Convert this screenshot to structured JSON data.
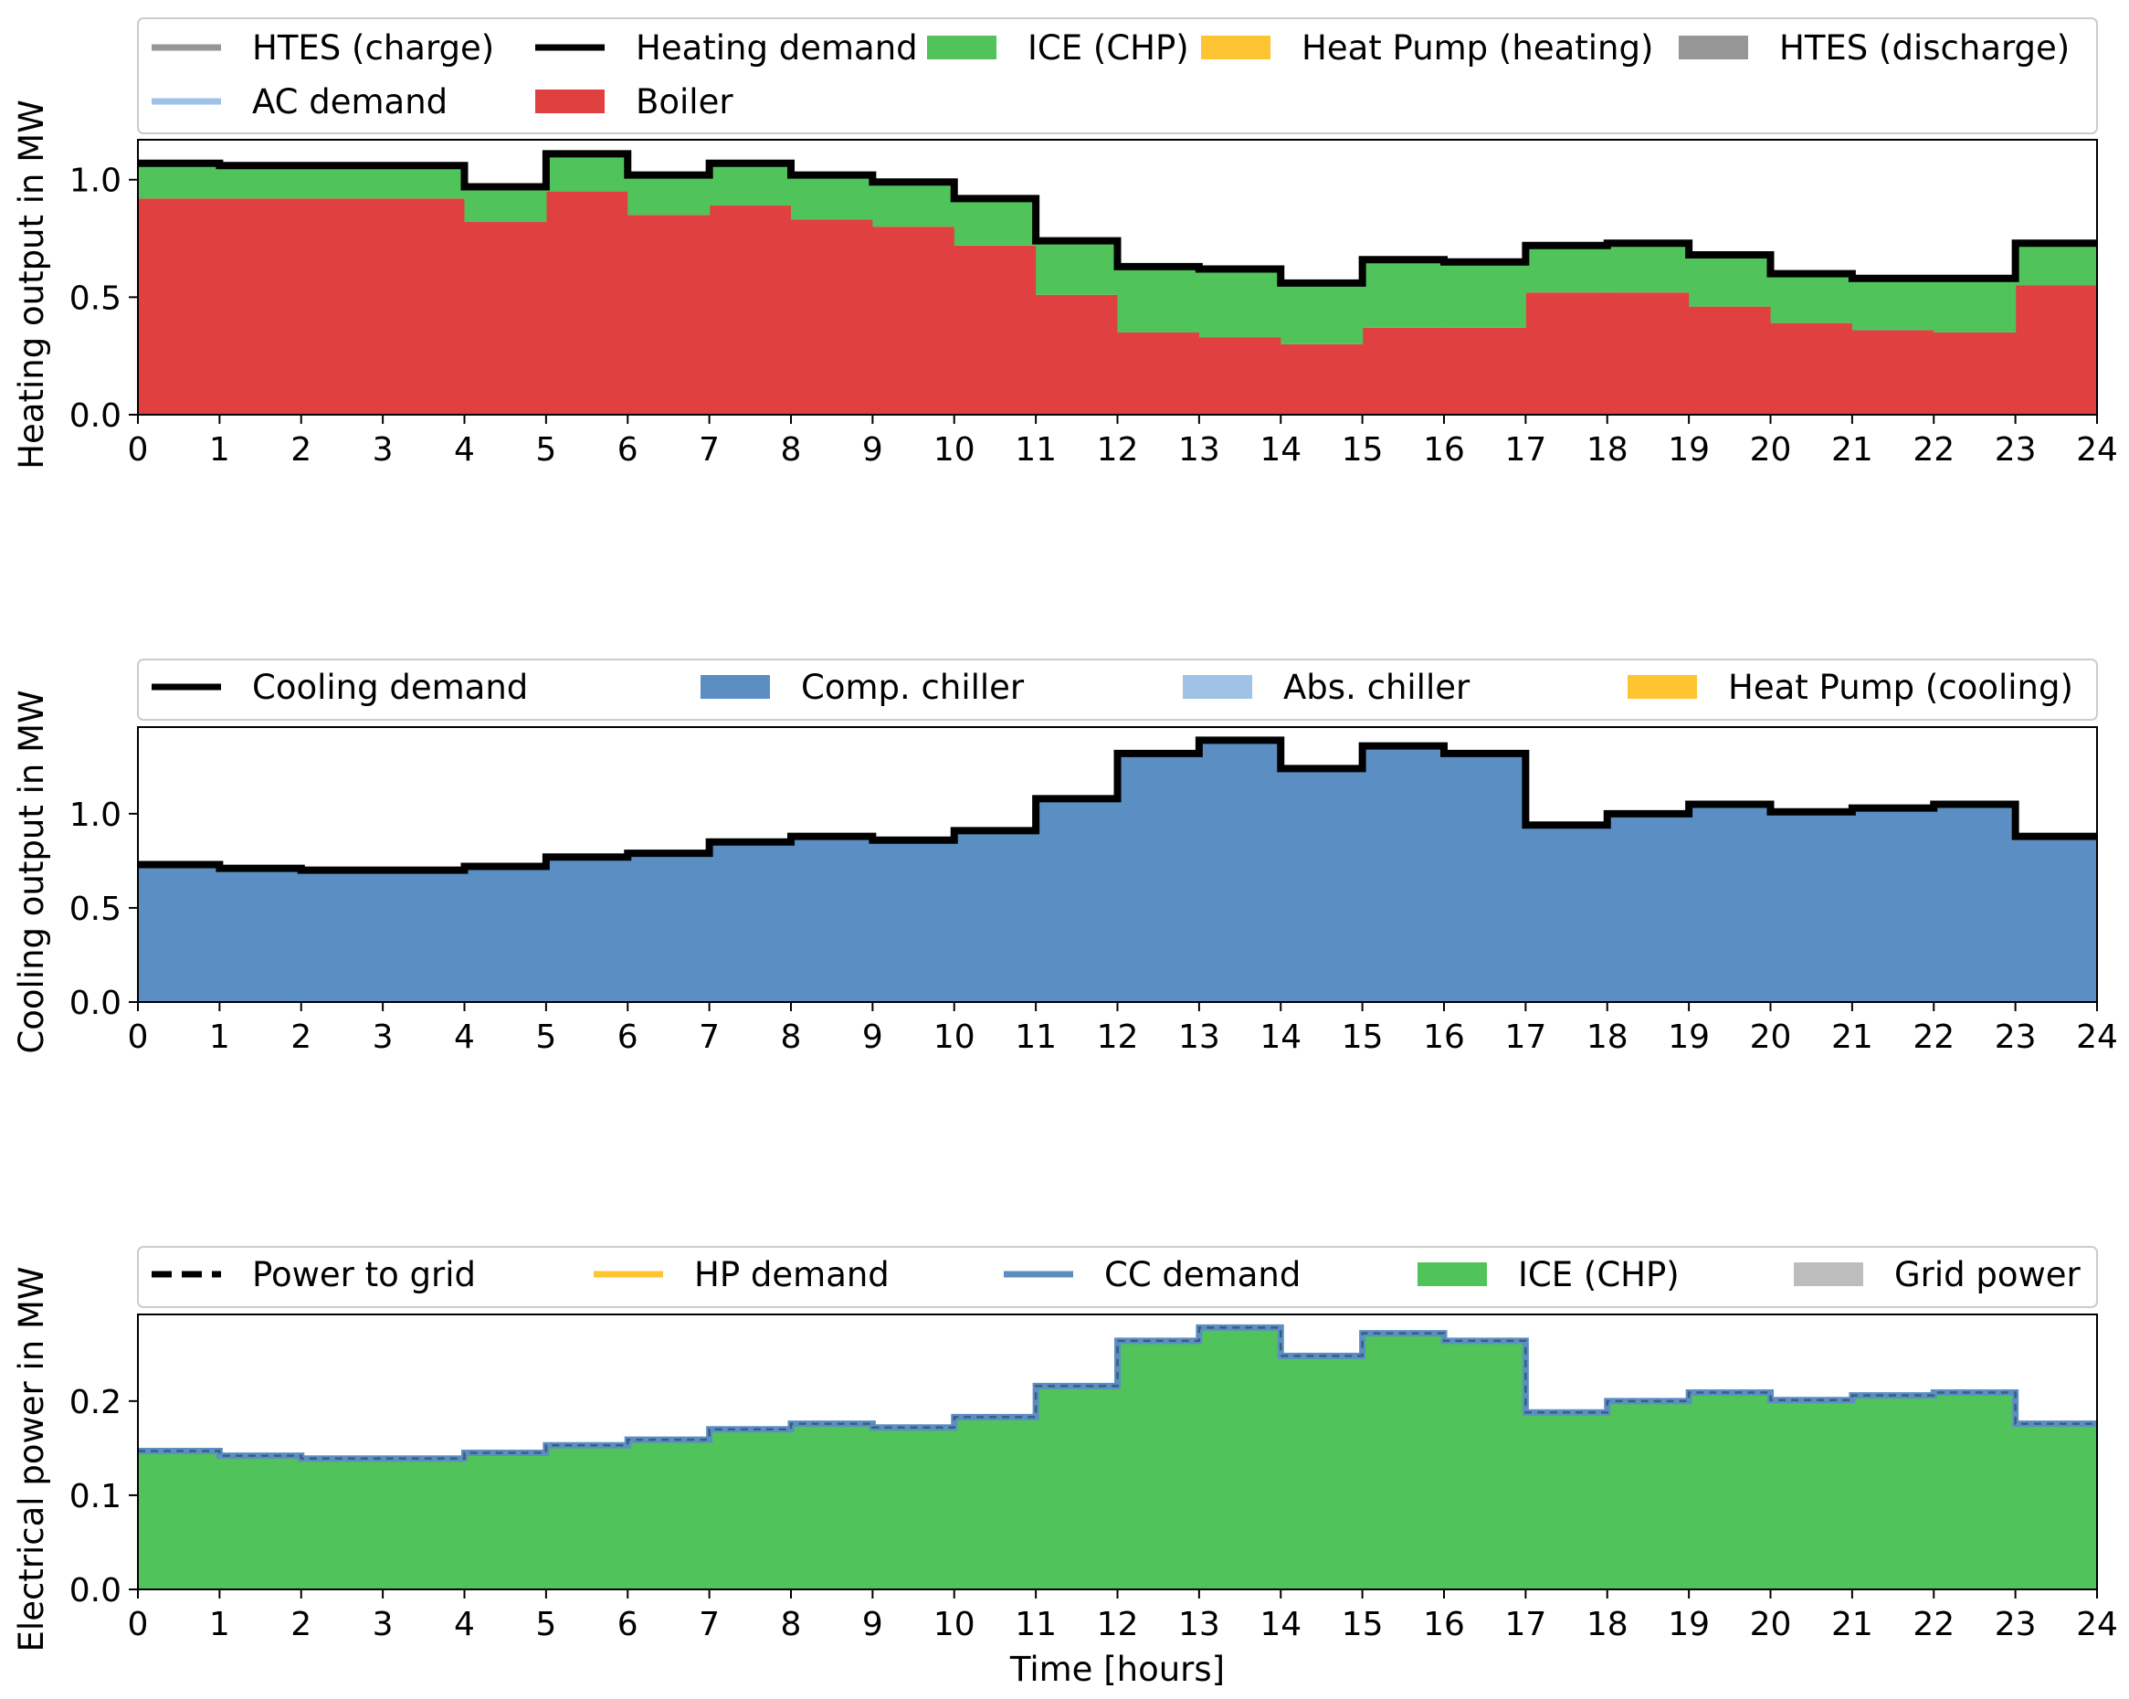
{
  "chart_data": [
    {
      "type": "area",
      "xlabel": "",
      "ylabel": "Heating output in MW",
      "xlim": [
        0,
        24
      ],
      "ylim": [
        0,
        1.17
      ],
      "xticks": [
        0,
        1,
        2,
        3,
        4,
        5,
        6,
        7,
        8,
        9,
        10,
        11,
        12,
        13,
        14,
        15,
        16,
        17,
        18,
        19,
        20,
        21,
        22,
        23,
        24
      ],
      "yticks": [
        "0.0",
        "0.5",
        "1.0"
      ],
      "ytick_values": [
        0,
        0.5,
        1.0
      ],
      "legend": [
        {
          "name": "HTES (charge)",
          "kind": "line",
          "color": "#969696"
        },
        {
          "name": "Heating demand",
          "kind": "line",
          "color": "#000000"
        },
        {
          "name": "ICE (CHP)",
          "kind": "patch",
          "color": "#50c35a"
        },
        {
          "name": "Heat Pump (heating)",
          "kind": "patch",
          "color": "#fec431"
        },
        {
          "name": "HTES (discharge)",
          "kind": "patch",
          "color": "#969696"
        },
        {
          "name": "AC demand",
          "kind": "line",
          "color": "#9fc3e6"
        },
        {
          "name": "Boiler",
          "kind": "patch",
          "color": "#e04040"
        }
      ],
      "stack": [
        {
          "name": "Boiler",
          "color": "#e04040",
          "values": [
            0.92,
            0.92,
            0.92,
            0.92,
            0.82,
            0.95,
            0.85,
            0.89,
            0.83,
            0.8,
            0.72,
            0.51,
            0.35,
            0.33,
            0.3,
            0.37,
            0.37,
            0.52,
            0.52,
            0.46,
            0.39,
            0.36,
            0.35,
            0.55
          ]
        },
        {
          "name": "ICE (CHP)",
          "color": "#50c35a",
          "values": [
            0.15,
            0.14,
            0.14,
            0.14,
            0.15,
            0.16,
            0.17,
            0.18,
            0.19,
            0.19,
            0.2,
            0.23,
            0.28,
            0.29,
            0.26,
            0.29,
            0.28,
            0.2,
            0.21,
            0.22,
            0.21,
            0.22,
            0.23,
            0.18
          ]
        }
      ],
      "line": {
        "name": "Heating demand",
        "color": "#000000",
        "values": [
          1.07,
          1.06,
          1.06,
          1.06,
          0.97,
          1.11,
          1.02,
          1.07,
          1.02,
          0.99,
          0.92,
          0.74,
          0.63,
          0.62,
          0.56,
          0.66,
          0.65,
          0.72,
          0.73,
          0.68,
          0.6,
          0.58,
          0.58,
          0.73
        ]
      }
    },
    {
      "type": "area",
      "xlabel": "",
      "ylabel": "Cooling output in MW",
      "xlim": [
        0,
        24
      ],
      "ylim": [
        0,
        1.46
      ],
      "xticks": [
        0,
        1,
        2,
        3,
        4,
        5,
        6,
        7,
        8,
        9,
        10,
        11,
        12,
        13,
        14,
        15,
        16,
        17,
        18,
        19,
        20,
        21,
        22,
        23,
        24
      ],
      "yticks": [
        "0.0",
        "0.5",
        "1.0"
      ],
      "ytick_values": [
        0,
        0.5,
        1.0
      ],
      "legend": [
        {
          "name": "Cooling demand",
          "kind": "line",
          "color": "#000000"
        },
        {
          "name": "Comp. chiller",
          "kind": "patch",
          "color": "#5b8fc3"
        },
        {
          "name": "Abs. chiller",
          "kind": "patch",
          "color": "#9fc3e6"
        },
        {
          "name": "Heat Pump (cooling)",
          "kind": "patch",
          "color": "#fec431"
        }
      ],
      "stack": [
        {
          "name": "Comp. chiller",
          "color": "#5b8fc3",
          "values": [
            0.73,
            0.71,
            0.7,
            0.7,
            0.72,
            0.77,
            0.79,
            0.85,
            0.88,
            0.86,
            0.91,
            1.08,
            1.32,
            1.39,
            1.24,
            1.36,
            1.32,
            0.94,
            1.0,
            1.05,
            1.01,
            1.03,
            1.05,
            0.88
          ]
        }
      ],
      "line": {
        "name": "Cooling demand",
        "color": "#000000",
        "values": [
          0.73,
          0.71,
          0.7,
          0.7,
          0.72,
          0.77,
          0.79,
          0.85,
          0.88,
          0.86,
          0.91,
          1.08,
          1.32,
          1.39,
          1.24,
          1.36,
          1.32,
          0.94,
          1.0,
          1.05,
          1.01,
          1.03,
          1.05,
          0.88
        ]
      }
    },
    {
      "type": "area",
      "xlabel": "Time [hours]",
      "ylabel": "Electrical power in MW",
      "xlim": [
        0,
        24
      ],
      "ylim": [
        0,
        0.292
      ],
      "xticks": [
        0,
        1,
        2,
        3,
        4,
        5,
        6,
        7,
        8,
        9,
        10,
        11,
        12,
        13,
        14,
        15,
        16,
        17,
        18,
        19,
        20,
        21,
        22,
        23,
        24
      ],
      "yticks": [
        "0.0",
        "0.1",
        "0.2"
      ],
      "ytick_values": [
        0,
        0.1,
        0.2
      ],
      "legend": [
        {
          "name": "Power to grid",
          "kind": "dash",
          "color": "#000000"
        },
        {
          "name": "HP demand",
          "kind": "line",
          "color": "#fec431"
        },
        {
          "name": "CC demand",
          "kind": "line",
          "color": "#5b8fc3"
        },
        {
          "name": "ICE (CHP)",
          "kind": "patch",
          "color": "#50c35a"
        },
        {
          "name": "Grid power",
          "kind": "patch",
          "color": "#bdbdbd"
        }
      ],
      "stack": [
        {
          "name": "ICE (CHP)",
          "color": "#50c35a",
          "values": [
            0.147,
            0.142,
            0.139,
            0.139,
            0.145,
            0.153,
            0.159,
            0.17,
            0.176,
            0.172,
            0.183,
            0.216,
            0.264,
            0.278,
            0.248,
            0.272,
            0.264,
            0.188,
            0.2,
            0.209,
            0.201,
            0.206,
            0.209,
            0.176
          ]
        }
      ],
      "line": {
        "name": "CC demand",
        "color": "#5b8fc3",
        "values": [
          0.147,
          0.142,
          0.139,
          0.139,
          0.145,
          0.153,
          0.159,
          0.17,
          0.176,
          0.172,
          0.183,
          0.216,
          0.264,
          0.278,
          0.248,
          0.272,
          0.264,
          0.188,
          0.2,
          0.209,
          0.201,
          0.206,
          0.209,
          0.176
        ]
      },
      "dash": {
        "name": "Power to grid",
        "color": "#000000",
        "values": [
          0.147,
          0.142,
          0.139,
          0.139,
          0.145,
          0.153,
          0.159,
          0.17,
          0.176,
          0.172,
          0.183,
          0.216,
          0.264,
          0.278,
          0.248,
          0.272,
          0.264,
          0.188,
          0.2,
          0.209,
          0.201,
          0.206,
          0.209,
          0.176
        ]
      }
    }
  ]
}
